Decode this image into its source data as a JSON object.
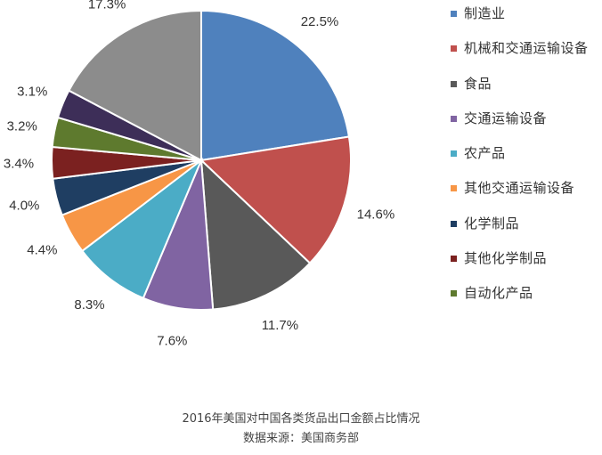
{
  "chart_data": {
    "type": "pie",
    "categories": [
      "制造业",
      "机械和交通运输设备",
      "食品",
      "交通运输设备",
      "农产品",
      "其他交通运输设备",
      "化学制品",
      "其他化学制品",
      "自动化产品",
      "",
      ""
    ],
    "values": [
      22.5,
      14.6,
      11.7,
      7.6,
      8.3,
      4.4,
      4.0,
      3.4,
      3.2,
      3.1,
      17.3
    ],
    "value_labels": [
      "22.5%",
      "14.6%",
      "11.7%",
      "7.6%",
      "8.3%",
      "4.4%",
      "4.0%",
      "3.4%",
      "3.2%",
      "3.1%",
      "17.3%"
    ],
    "colors": [
      "#4f81bd",
      "#c0504d",
      "#595959",
      "#8064a2",
      "#4bacc6",
      "#f79646",
      "#1f3e62",
      "#7b2120",
      "#5e7a2e",
      "#3d2e58",
      "#8c8c8c"
    ],
    "start_angle_deg": 0,
    "direction": "clockwise",
    "legend_position": "right"
  },
  "caption": {
    "title": "2016年美国对中国各类货品出口金额占比情况",
    "source": "数据来源：美国商务部"
  }
}
